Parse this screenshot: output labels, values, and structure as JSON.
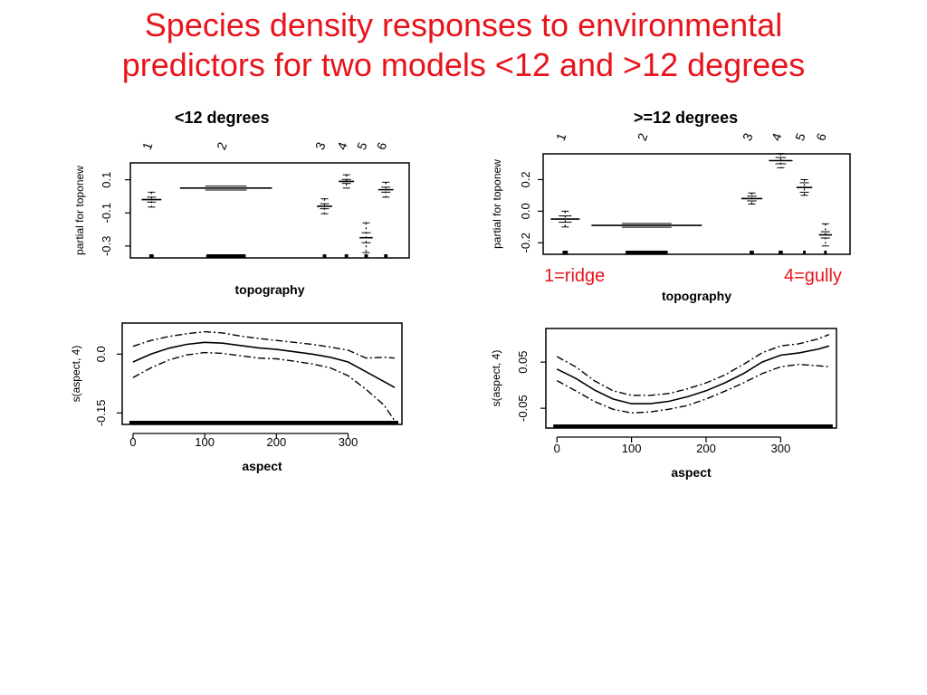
{
  "slide": {
    "title_line1": "Species density responses to environmental",
    "title_line2": "predictors for two models <12 and >12 degrees",
    "title_color": "#e8141c",
    "left_heading": "<12 degrees",
    "right_heading": ">=12 degrees",
    "note_ridge": "1=ridge",
    "note_gully": "4=gully",
    "note_color": "#e8141c"
  },
  "chart_data": [
    {
      "type": "box",
      "panel": "topography-lt12",
      "xlabel": "topography",
      "ylabel": "partial for toponew",
      "categories": [
        "1",
        "2",
        "3",
        "4",
        "5",
        "6"
      ],
      "x_positions": [
        0.4,
        2.1,
        4.35,
        4.85,
        5.3,
        5.75
      ],
      "x_widths": [
        0.45,
        2.1,
        0.35,
        0.35,
        0.3,
        0.35
      ],
      "xlim": [
        0,
        6.2
      ],
      "ylim": [
        -0.35,
        0.18
      ],
      "yticks": [
        0.1,
        -0.1,
        -0.3
      ],
      "ytick_labels": [
        "0.1",
        "-0.1",
        "-0.3"
      ],
      "estimate": [
        -0.02,
        0.05,
        -0.06,
        0.09,
        -0.25,
        0.04
      ],
      "se_inner": [
        0.015,
        0.012,
        0.015,
        0.012,
        0.03,
        0.015
      ],
      "ci_outer": [
        0.045,
        0.0,
        0.045,
        0.04,
        0.09,
        0.045
      ],
      "rug_at": [
        0.4,
        2.1,
        4.35,
        4.85,
        5.3,
        5.75
      ],
      "rug_width": [
        0.1,
        0.9,
        0.08,
        0.08,
        0.08,
        0.08
      ]
    },
    {
      "type": "box",
      "panel": "topography-ge12",
      "xlabel": "topography",
      "ylabel": "partial for toponew",
      "categories": [
        "1",
        "2",
        "3",
        "4",
        "5",
        "6"
      ],
      "x_positions": [
        0.35,
        1.9,
        3.9,
        4.45,
        4.9,
        5.3
      ],
      "x_widths": [
        0.55,
        2.1,
        0.4,
        0.45,
        0.3,
        0.25
      ],
      "xlim": [
        0,
        5.7
      ],
      "ylim": [
        -0.25,
        0.34
      ],
      "yticks": [
        0.2,
        0.0,
        -0.2
      ],
      "ytick_labels": [
        "0.2",
        "0.0",
        "-0.2"
      ],
      "estimate": [
        -0.05,
        -0.09,
        0.08,
        0.32,
        0.15,
        -0.15
      ],
      "se_inner": [
        0.02,
        0.012,
        0.015,
        0.02,
        0.03,
        0.02
      ],
      "ci_outer": [
        0.05,
        0.0,
        0.035,
        0.045,
        0.05,
        0.07
      ],
      "rug_at": [
        0.35,
        1.9,
        3.9,
        4.45,
        4.9,
        5.3
      ],
      "rug_width": [
        0.1,
        0.8,
        0.08,
        0.08,
        0.05,
        0.05
      ]
    },
    {
      "type": "line",
      "panel": "aspect-lt12",
      "xlabel": "aspect",
      "ylabel": "s(aspect, 4)",
      "xlim": [
        -10,
        370
      ],
      "ylim": [
        -0.17,
        0.07
      ],
      "xticks": [
        0,
        100,
        200,
        300
      ],
      "xtick_labels": [
        "0",
        "100",
        "200",
        "300"
      ],
      "yticks": [
        0.0,
        -0.15
      ],
      "ytick_labels": [
        "0.0",
        "-0.15"
      ],
      "x": [
        0,
        25,
        50,
        75,
        100,
        125,
        150,
        175,
        200,
        225,
        250,
        275,
        300,
        325,
        350,
        365
      ],
      "fit": [
        -0.02,
        0.0,
        0.015,
        0.025,
        0.03,
        0.028,
        0.022,
        0.016,
        0.012,
        0.006,
        0.0,
        -0.008,
        -0.02,
        -0.045,
        -0.07,
        -0.085
      ],
      "upper": [
        0.02,
        0.035,
        0.045,
        0.052,
        0.057,
        0.054,
        0.046,
        0.04,
        0.035,
        0.03,
        0.025,
        0.018,
        0.01,
        -0.01,
        -0.008,
        -0.01
      ],
      "lower": [
        -0.06,
        -0.035,
        -0.015,
        -0.002,
        0.004,
        0.002,
        -0.004,
        -0.01,
        -0.012,
        -0.018,
        -0.025,
        -0.035,
        -0.055,
        -0.09,
        -0.13,
        -0.17
      ],
      "rug": [
        0,
        365
      ]
    },
    {
      "type": "line",
      "panel": "aspect-ge12",
      "xlabel": "aspect",
      "ylabel": "s(aspect, 4)",
      "xlim": [
        -10,
        370
      ],
      "ylim": [
        -0.085,
        0.115
      ],
      "xticks": [
        0,
        100,
        200,
        300
      ],
      "xtick_labels": [
        "0",
        "100",
        "200",
        "300"
      ],
      "yticks": [
        0.05,
        -0.05
      ],
      "ytick_labels": [
        "0.05",
        "-0.05"
      ],
      "x": [
        0,
        25,
        50,
        75,
        100,
        125,
        150,
        175,
        200,
        225,
        250,
        275,
        300,
        325,
        350,
        365
      ],
      "fit": [
        0.035,
        0.015,
        -0.01,
        -0.03,
        -0.04,
        -0.04,
        -0.035,
        -0.025,
        -0.012,
        0.005,
        0.025,
        0.05,
        0.065,
        0.07,
        0.078,
        0.085
      ],
      "upper": [
        0.062,
        0.04,
        0.01,
        -0.012,
        -0.022,
        -0.022,
        -0.018,
        -0.008,
        0.005,
        0.022,
        0.045,
        0.07,
        0.085,
        0.09,
        0.1,
        0.11
      ],
      "lower": [
        0.01,
        -0.012,
        -0.035,
        -0.052,
        -0.06,
        -0.058,
        -0.052,
        -0.044,
        -0.03,
        -0.013,
        0.005,
        0.025,
        0.04,
        0.045,
        0.042,
        0.04
      ],
      "rug": [
        0,
        365
      ]
    }
  ]
}
